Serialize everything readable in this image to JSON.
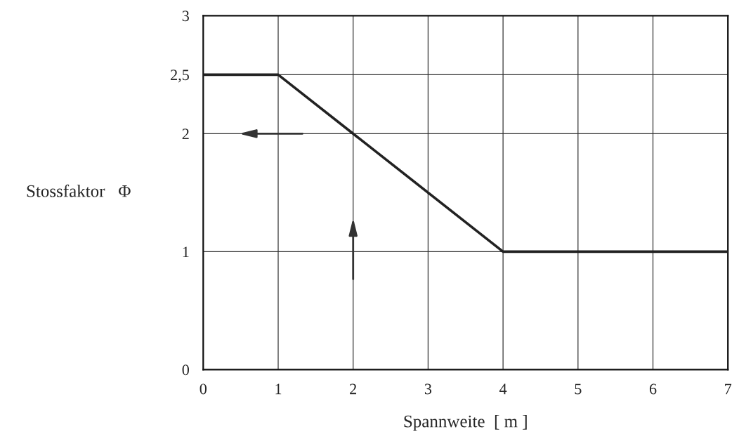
{
  "chart_data": {
    "type": "line",
    "xlabel": "Spannweite  [ m ]",
    "ylabel": "Stossfaktor   Φ",
    "x": [
      0,
      1,
      4,
      7
    ],
    "series": [
      {
        "color": "#222222",
        "values": [
          2.5,
          2.5,
          1,
          1
        ]
      }
    ],
    "xlim": [
      0,
      7
    ],
    "ylim": [
      0,
      3
    ],
    "xticks": [
      0,
      1,
      2,
      3,
      4,
      5,
      6,
      7
    ],
    "yticks": [
      0,
      1,
      2,
      {
        "value": 2.5,
        "label": "2,5"
      },
      3
    ],
    "grid": true,
    "marker": "none",
    "line_style": "solid"
  }
}
